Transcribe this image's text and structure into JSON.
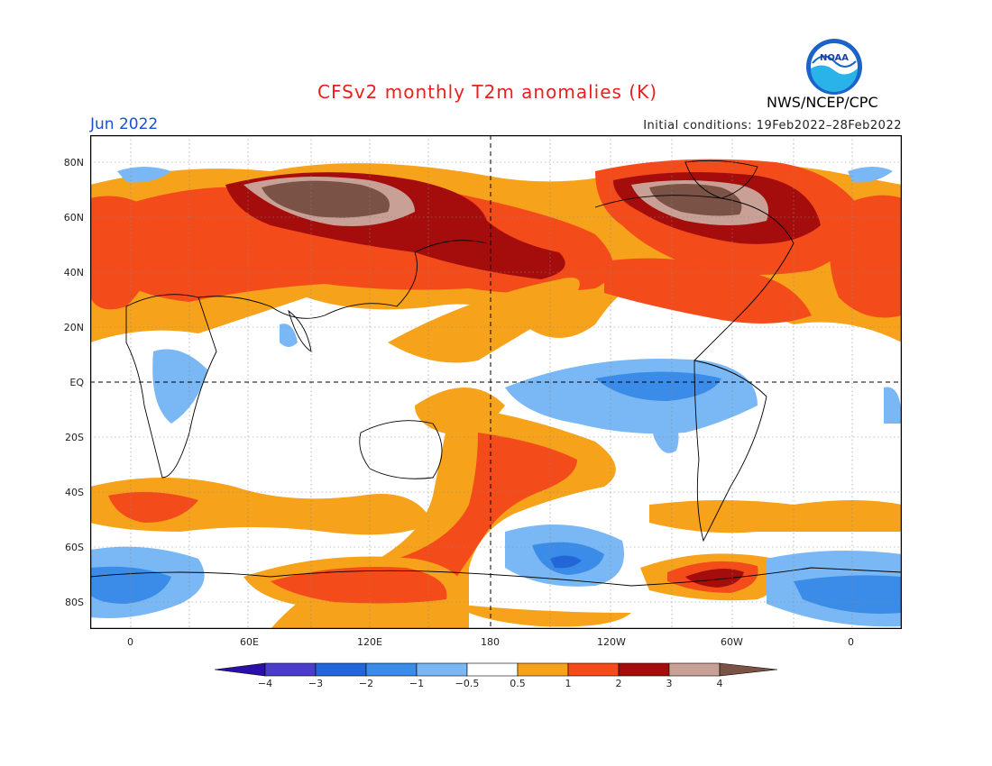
{
  "header": {
    "title": "CFSv2 monthly T2m anomalies (K)",
    "month": "Jun 2022",
    "initial_conditions": "Initial conditions: 19Feb2022–28Feb2022",
    "organization": "NWS/NCEP/CPC",
    "logo_text": "NOAA"
  },
  "map": {
    "lat_labels": [
      "80N",
      "60N",
      "40N",
      "20N",
      "EQ",
      "20S",
      "40S",
      "60S",
      "80S"
    ],
    "lon_labels": [
      "0",
      "60E",
      "120E",
      "180",
      "120W",
      "60W",
      "0"
    ]
  },
  "colorbar": {
    "labels": [
      "−4",
      "−3",
      "−2",
      "−1",
      "−0.5",
      "0.5",
      "1",
      "2",
      "3",
      "4"
    ],
    "colors": [
      "#2c0fa8",
      "#4a3ec8",
      "#2266d8",
      "#3a8ce8",
      "#7ab8f5",
      "#ffffff",
      "#f7a21b",
      "#f44b1b",
      "#a50d0d",
      "#c8a096",
      "#7a5246"
    ]
  }
}
